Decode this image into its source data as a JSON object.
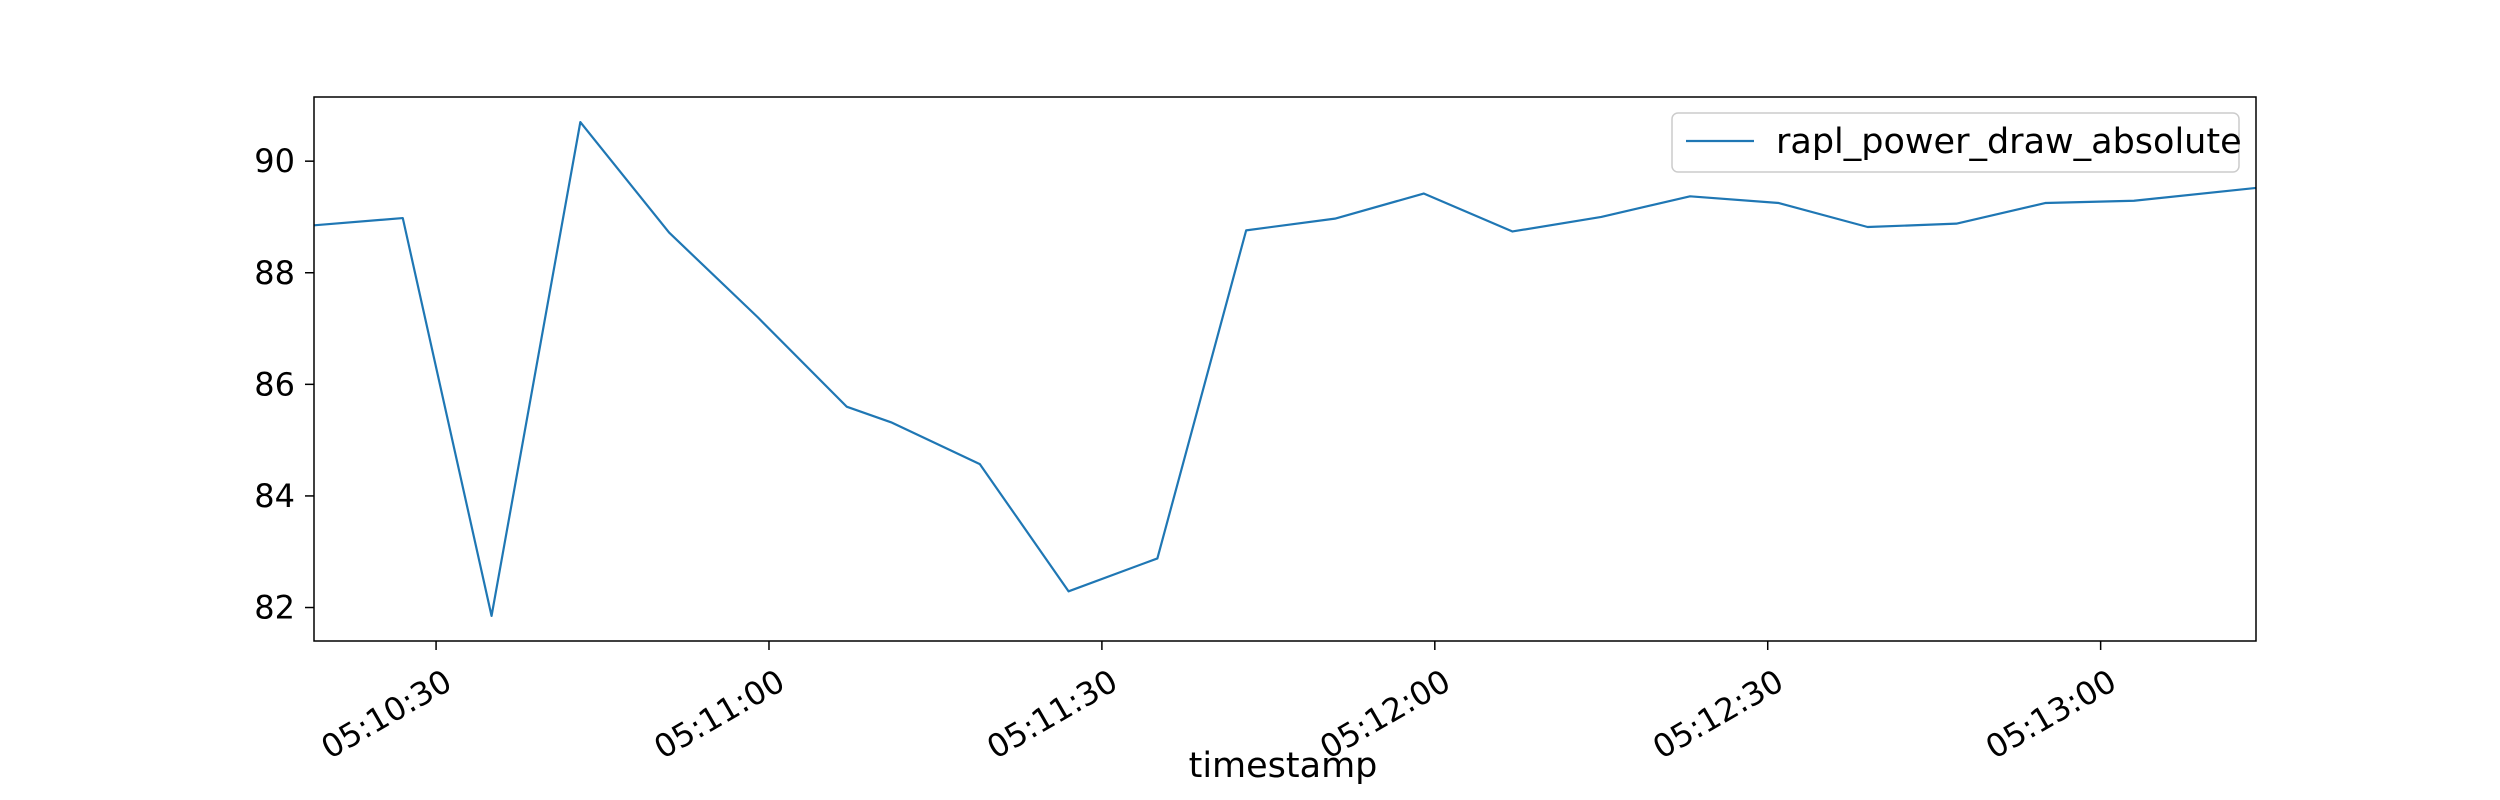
{
  "chart_data": {
    "type": "line",
    "title": "",
    "xlabel": "timestamp",
    "ylabel": "",
    "x_range": [
      "05:10:19",
      "05:13:14"
    ],
    "ylim": [
      81.4,
      91.15
    ],
    "grid": false,
    "legend_position": "top-right",
    "x_ticks": [
      "05:10:30",
      "05:11:00",
      "05:11:30",
      "05:12:00",
      "05:12:30",
      "05:13:00"
    ],
    "y_ticks": [
      82,
      84,
      86,
      88,
      90
    ],
    "series": [
      {
        "name": "rapl_power_draw_absolute",
        "color": "#1f77b4",
        "x": [
          "05:10:19",
          "05:10:27",
          "05:10:35",
          "05:10:43",
          "05:10:51",
          "05:10:59",
          "05:11:07",
          "05:11:11",
          "05:11:19",
          "05:11:27",
          "05:11:35",
          "05:11:43",
          "05:11:51",
          "05:11:59",
          "05:12:07",
          "05:12:15",
          "05:12:23",
          "05:12:31",
          "05:12:39",
          "05:12:47",
          "05:12:55",
          "05:13:03",
          "05:13:14"
        ],
        "values": [
          88.85,
          88.98,
          81.85,
          90.7,
          88.72,
          87.2,
          85.6,
          85.32,
          84.57,
          82.29,
          82.88,
          88.76,
          88.97,
          89.42,
          88.74,
          89.0,
          89.37,
          89.25,
          88.82,
          88.88,
          89.25,
          89.29,
          89.52
        ]
      }
    ]
  }
}
